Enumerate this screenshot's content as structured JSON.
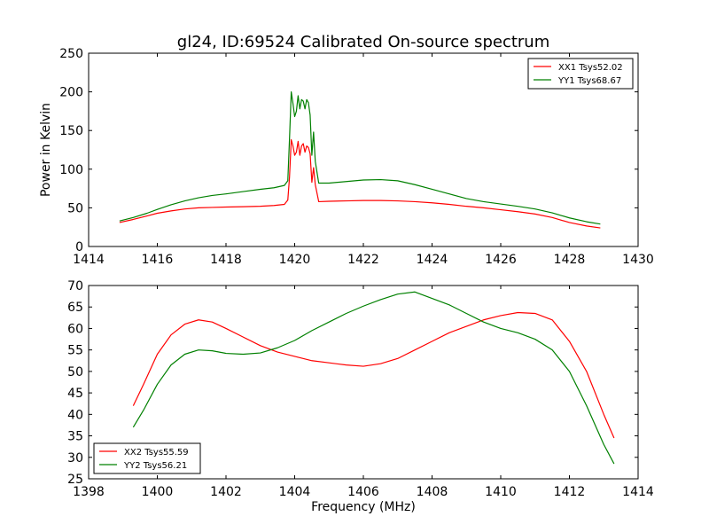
{
  "chart_data": [
    {
      "type": "line",
      "title": "gl24, ID:69524 Calibrated On-source spectrum",
      "xlabel": "",
      "ylabel": "Power in Kelvin",
      "xlim": [
        1414,
        1430
      ],
      "ylim": [
        0,
        250
      ],
      "xticks": [
        1414,
        1416,
        1418,
        1420,
        1422,
        1424,
        1426,
        1428,
        1430
      ],
      "yticks": [
        0,
        50,
        100,
        150,
        200,
        250
      ],
      "legend_position": "top-right",
      "series": [
        {
          "name": "XX1 Tsys52.02",
          "color": "#ff0000",
          "points": [
            [
              1414.9,
              31
            ],
            [
              1415.3,
              35
            ],
            [
              1415.7,
              39.5
            ],
            [
              1416.0,
              43
            ],
            [
              1416.4,
              46
            ],
            [
              1416.8,
              48.5
            ],
            [
              1417.2,
              50
            ],
            [
              1417.6,
              50.5
            ],
            [
              1418.0,
              51
            ],
            [
              1418.5,
              51.5
            ],
            [
              1419.0,
              52
            ],
            [
              1419.4,
              53
            ],
            [
              1419.7,
              54.5
            ],
            [
              1419.8,
              60
            ],
            [
              1419.85,
              90
            ],
            [
              1419.9,
              138
            ],
            [
              1419.95,
              130
            ],
            [
              1420.0,
              118
            ],
            [
              1420.05,
              122
            ],
            [
              1420.1,
              136
            ],
            [
              1420.15,
              118
            ],
            [
              1420.2,
              130
            ],
            [
              1420.25,
              133
            ],
            [
              1420.3,
              122
            ],
            [
              1420.35,
              130
            ],
            [
              1420.4,
              128
            ],
            [
              1420.45,
              120
            ],
            [
              1420.5,
              83
            ],
            [
              1420.55,
              102
            ],
            [
              1420.6,
              80
            ],
            [
              1420.7,
              58
            ],
            [
              1421.0,
              58.5
            ],
            [
              1421.5,
              59
            ],
            [
              1422.0,
              59.5
            ],
            [
              1422.5,
              59.5
            ],
            [
              1423.0,
              59
            ],
            [
              1423.5,
              58
            ],
            [
              1424.0,
              56.5
            ],
            [
              1424.5,
              54.5
            ],
            [
              1425.0,
              52
            ],
            [
              1425.5,
              50
            ],
            [
              1426.0,
              47.5
            ],
            [
              1426.5,
              45
            ],
            [
              1427.0,
              42
            ],
            [
              1427.5,
              37.5
            ],
            [
              1428.0,
              31
            ],
            [
              1428.5,
              26.5
            ],
            [
              1428.9,
              24
            ]
          ]
        },
        {
          "name": "YY1 Tsys68.67",
          "color": "#008000",
          "points": [
            [
              1414.9,
              33
            ],
            [
              1415.3,
              37.5
            ],
            [
              1415.7,
              43
            ],
            [
              1416.0,
              48
            ],
            [
              1416.4,
              54
            ],
            [
              1416.8,
              59
            ],
            [
              1417.2,
              63
            ],
            [
              1417.6,
              66
            ],
            [
              1418.0,
              68
            ],
            [
              1418.5,
              71
            ],
            [
              1419.0,
              74
            ],
            [
              1419.4,
              76
            ],
            [
              1419.7,
              79
            ],
            [
              1419.8,
              85
            ],
            [
              1419.85,
              140
            ],
            [
              1419.9,
              200
            ],
            [
              1419.95,
              185
            ],
            [
              1420.0,
              168
            ],
            [
              1420.05,
              175
            ],
            [
              1420.1,
              195
            ],
            [
              1420.15,
              178
            ],
            [
              1420.2,
              190
            ],
            [
              1420.25,
              188
            ],
            [
              1420.3,
              178
            ],
            [
              1420.35,
              190
            ],
            [
              1420.4,
              186
            ],
            [
              1420.45,
              170
            ],
            [
              1420.5,
              118
            ],
            [
              1420.55,
              148
            ],
            [
              1420.6,
              110
            ],
            [
              1420.7,
              82
            ],
            [
              1421.0,
              82
            ],
            [
              1421.5,
              84
            ],
            [
              1422.0,
              86
            ],
            [
              1422.5,
              86.5
            ],
            [
              1423.0,
              85
            ],
            [
              1423.5,
              80
            ],
            [
              1424.0,
              74
            ],
            [
              1424.5,
              68
            ],
            [
              1425.0,
              62
            ],
            [
              1425.5,
              58
            ],
            [
              1426.0,
              55
            ],
            [
              1426.5,
              52
            ],
            [
              1427.0,
              48.5
            ],
            [
              1427.5,
              43.5
            ],
            [
              1428.0,
              37
            ],
            [
              1428.5,
              32
            ],
            [
              1428.9,
              29
            ]
          ]
        }
      ]
    },
    {
      "type": "line",
      "title": "",
      "xlabel": "Frequency (MHz)",
      "ylabel": "",
      "xlim": [
        1398,
        1414
      ],
      "ylim": [
        25,
        70
      ],
      "xticks": [
        1398,
        1400,
        1402,
        1404,
        1406,
        1408,
        1410,
        1412,
        1414
      ],
      "yticks": [
        25,
        30,
        35,
        40,
        45,
        50,
        55,
        60,
        65,
        70
      ],
      "legend_position": "bottom-left",
      "series": [
        {
          "name": "XX2 Tsys55.59",
          "color": "#ff0000",
          "points": [
            [
              1399.3,
              42
            ],
            [
              1399.6,
              47
            ],
            [
              1400.0,
              54
            ],
            [
              1400.4,
              58.5
            ],
            [
              1400.8,
              61
            ],
            [
              1401.2,
              62
            ],
            [
              1401.6,
              61.5
            ],
            [
              1402.0,
              60
            ],
            [
              1402.5,
              58
            ],
            [
              1403.0,
              56
            ],
            [
              1403.5,
              54.5
            ],
            [
              1404.0,
              53.5
            ],
            [
              1404.5,
              52.5
            ],
            [
              1405.0,
              52
            ],
            [
              1405.5,
              51.5
            ],
            [
              1406.0,
              51.2
            ],
            [
              1406.5,
              51.8
            ],
            [
              1407.0,
              53
            ],
            [
              1407.5,
              55
            ],
            [
              1408.0,
              57
            ],
            [
              1408.5,
              59
            ],
            [
              1409.0,
              60.5
            ],
            [
              1409.5,
              62
            ],
            [
              1410.0,
              63
            ],
            [
              1410.5,
              63.7
            ],
            [
              1411.0,
              63.5
            ],
            [
              1411.5,
              62
            ],
            [
              1412.0,
              57
            ],
            [
              1412.5,
              50
            ],
            [
              1413.0,
              40
            ],
            [
              1413.3,
              34.5
            ]
          ]
        },
        {
          "name": "YY2 Tsys56.21",
          "color": "#008000",
          "points": [
            [
              1399.3,
              37
            ],
            [
              1399.6,
              41
            ],
            [
              1400.0,
              47
            ],
            [
              1400.4,
              51.5
            ],
            [
              1400.8,
              54
            ],
            [
              1401.2,
              55
            ],
            [
              1401.6,
              54.8
            ],
            [
              1402.0,
              54.2
            ],
            [
              1402.5,
              54
            ],
            [
              1403.0,
              54.3
            ],
            [
              1403.5,
              55.5
            ],
            [
              1404.0,
              57.2
            ],
            [
              1404.5,
              59.5
            ],
            [
              1405.0,
              61.5
            ],
            [
              1405.5,
              63.5
            ],
            [
              1406.0,
              65.2
            ],
            [
              1406.5,
              66.7
            ],
            [
              1407.0,
              68
            ],
            [
              1407.5,
              68.5
            ],
            [
              1408.0,
              67
            ],
            [
              1408.5,
              65.5
            ],
            [
              1409.0,
              63.5
            ],
            [
              1409.5,
              61.5
            ],
            [
              1410.0,
              60
            ],
            [
              1410.5,
              59
            ],
            [
              1411.0,
              57.5
            ],
            [
              1411.5,
              55
            ],
            [
              1412.0,
              50
            ],
            [
              1412.5,
              42
            ],
            [
              1413.0,
              33
            ],
            [
              1413.3,
              28.5
            ]
          ]
        }
      ]
    }
  ]
}
